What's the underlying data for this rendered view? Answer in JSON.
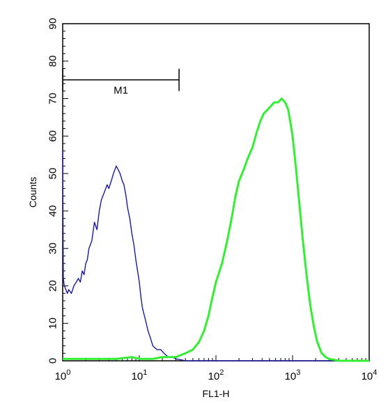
{
  "chart_data": {
    "type": "line",
    "xlabel": "FL1-H",
    "ylabel": "Counts",
    "x_scale": "log",
    "xlim": [
      1,
      10000
    ],
    "ylim": [
      0,
      90
    ],
    "grid": false,
    "x_ticks": [
      {
        "value": 1,
        "base": "10",
        "exp": "0"
      },
      {
        "value": 10,
        "base": "10",
        "exp": "1"
      },
      {
        "value": 100,
        "base": "10",
        "exp": "2"
      },
      {
        "value": 1000,
        "base": "10",
        "exp": "3"
      },
      {
        "value": 10000,
        "base": "10",
        "exp": "4"
      }
    ],
    "y_ticks": [
      "0",
      "10",
      "20",
      "30",
      "40",
      "50",
      "60",
      "70",
      "80",
      "90"
    ],
    "marker": {
      "label": "M1",
      "x_range": [
        1,
        33
      ],
      "y": 75
    },
    "series": [
      {
        "color": "#1a1a9c",
        "x": [
          1.0,
          1.02,
          1.05,
          1.1,
          1.15,
          1.2,
          1.3,
          1.4,
          1.5,
          1.6,
          1.7,
          1.8,
          1.9,
          2.0,
          2.1,
          2.2,
          2.4,
          2.6,
          2.8,
          3.0,
          3.2,
          3.5,
          3.8,
          4.0,
          4.3,
          4.6,
          5.0,
          5.3,
          5.6,
          6.0,
          6.3,
          6.7,
          7.0,
          7.5,
          8.0,
          8.5,
          9.0,
          9.5,
          10.0,
          10.5,
          11.0,
          12.0,
          13.0,
          14.0,
          15.0,
          17.0,
          19.0,
          21.0,
          24.0,
          27.0,
          30.0,
          35.0,
          40.0,
          50.0,
          70.0,
          100.0,
          1000.0,
          10000.0
        ],
        "y": [
          56,
          22,
          20,
          19,
          18,
          19,
          18,
          20,
          21,
          22,
          21,
          24,
          23,
          26,
          27,
          30,
          32,
          37,
          35,
          40,
          43,
          45,
          47,
          46,
          48,
          50,
          52,
          51,
          50,
          48,
          47,
          44,
          41,
          38,
          34,
          31,
          27,
          24,
          21,
          17,
          14,
          11,
          8,
          6,
          4,
          3,
          3,
          2,
          1,
          1,
          0.5,
          0.3,
          0,
          0,
          0,
          0,
          0,
          0
        ]
      },
      {
        "color": "#33ee33",
        "x": [
          1.0,
          5.0,
          8.0,
          10.0,
          15.0,
          20.0,
          30.0,
          40.0,
          50.0,
          60.0,
          70.0,
          80.0,
          90.0,
          100.0,
          120.0,
          140.0,
          160.0,
          180.0,
          200.0,
          230.0,
          260.0,
          300.0,
          340.0,
          380.0,
          420.0,
          470.0,
          520.0,
          580.0,
          650.0,
          720.0,
          800.0,
          880.0,
          950.0,
          1000.0,
          1100.0,
          1200.0,
          1350.0,
          1500.0,
          1700.0,
          1900.0,
          2100.0,
          2400.0,
          2700.0,
          3000.0,
          3500.0,
          4000.0,
          5000.0,
          10000.0
        ],
        "y": [
          0.5,
          0.5,
          1,
          0.5,
          0.5,
          1,
          1,
          2,
          3,
          5,
          8,
          12,
          17,
          21,
          26,
          32,
          38,
          44,
          48,
          51,
          54,
          57,
          61,
          64,
          66,
          67,
          68,
          69,
          69,
          70,
          69,
          67,
          63,
          60,
          52,
          44,
          33,
          24,
          15,
          9,
          5,
          2,
          1,
          0.5,
          0.3,
          0,
          0,
          0
        ]
      }
    ]
  }
}
